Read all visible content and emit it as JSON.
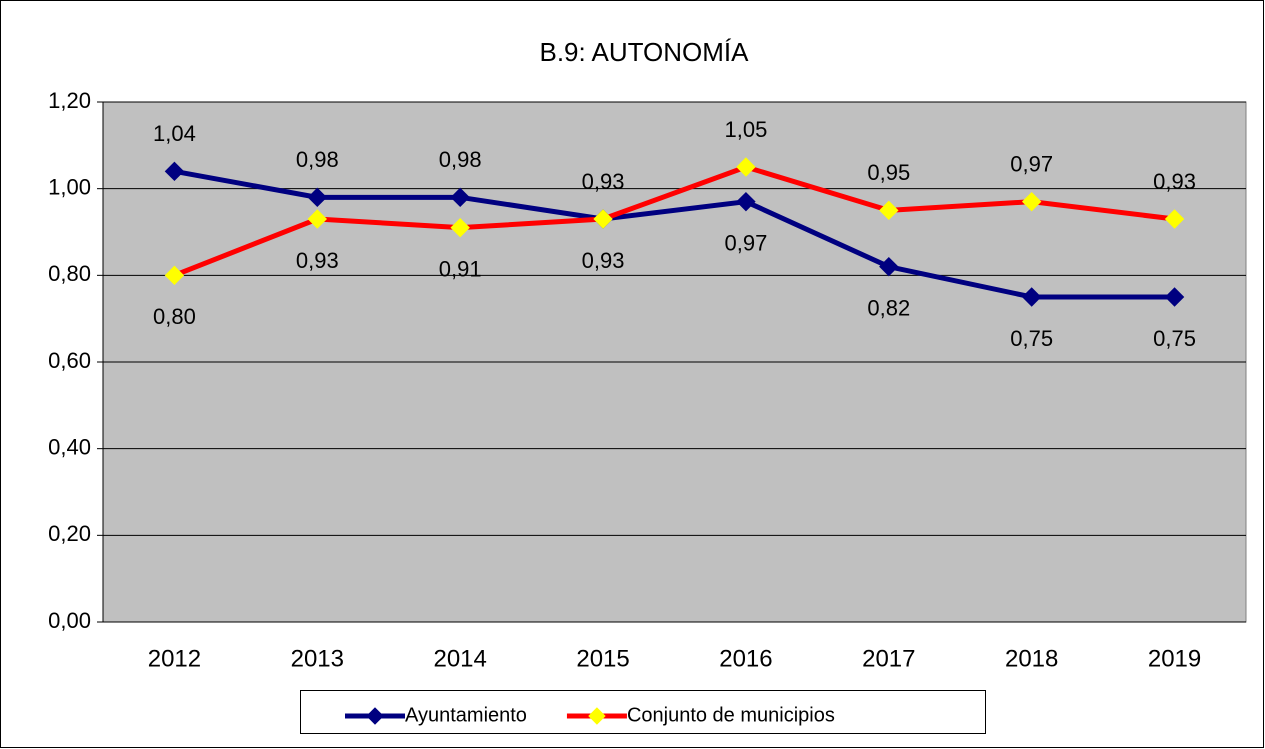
{
  "chart_data": {
    "type": "line",
    "title": "B.9: AUTONOMÍA",
    "categories": [
      "2012",
      "2013",
      "2014",
      "2015",
      "2016",
      "2017",
      "2018",
      "2019"
    ],
    "series": [
      {
        "name": "Ayuntamiento",
        "color": "#000080",
        "marker_color": "#000080",
        "values": [
          1.04,
          0.98,
          0.98,
          0.93,
          0.97,
          0.82,
          0.75,
          0.75
        ],
        "value_labels": [
          "1,04",
          "0,98",
          "0,98",
          "0,93",
          "0,97",
          "0,82",
          "0,75",
          "0,75"
        ]
      },
      {
        "name": "Conjunto de municipios",
        "color": "#ff0000",
        "marker_color": "#ffff00",
        "values": [
          0.8,
          0.93,
          0.91,
          0.93,
          1.05,
          0.95,
          0.97,
          0.93
        ],
        "value_labels": [
          "0,80",
          "0,93",
          "0,91",
          "0,93",
          "1,05",
          "0,95",
          "0,97",
          "0,93"
        ]
      }
    ],
    "ylim": [
      0,
      1.2
    ],
    "yticks": [
      {
        "value": 0,
        "label": "0,00"
      },
      {
        "value": 0.2,
        "label": "0,20"
      },
      {
        "value": 0.4,
        "label": "0,40"
      },
      {
        "value": 0.6,
        "label": "0,60"
      },
      {
        "value": 0.8,
        "label": "0,80"
      },
      {
        "value": 1.0,
        "label": "1,00"
      },
      {
        "value": 1.2,
        "label": "1,20"
      }
    ],
    "grid": true,
    "legend": "bottom"
  }
}
